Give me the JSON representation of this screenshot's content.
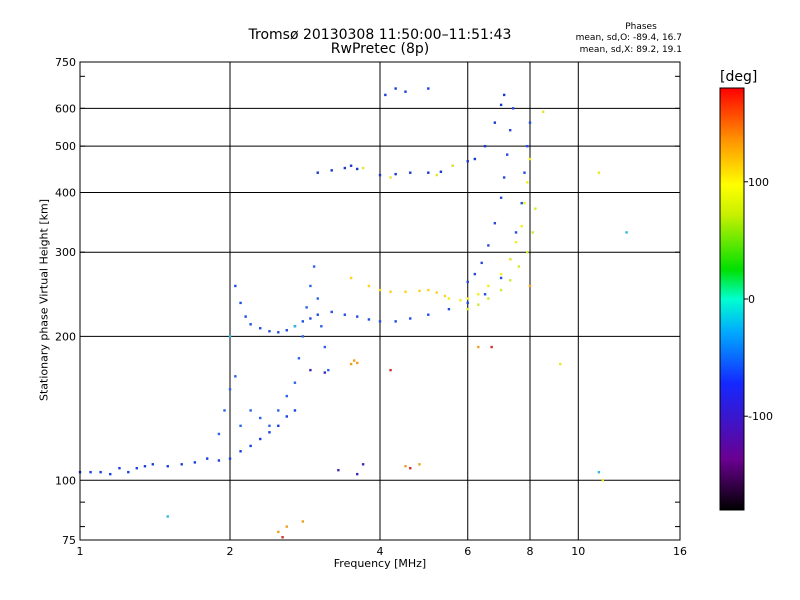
{
  "chart_data": {
    "type": "scatter",
    "title": "Tromsø 20130308 11:50:00–11:51:43",
    "subtitle": "RwPretec (8p)",
    "xlabel": "Frequency [MHz]",
    "ylabel": "Stationary phase Virtual Height [km]",
    "x_scale": "log2",
    "y_scale": "log",
    "xlim": [
      1,
      16
    ],
    "ylim": [
      75,
      750
    ],
    "x_ticks": [
      1,
      2,
      4,
      6,
      8,
      10,
      16
    ],
    "y_ticks": [
      75,
      100,
      200,
      300,
      400,
      500,
      600,
      750
    ],
    "grid": true,
    "color_scale": {
      "label": "[deg]",
      "range": [
        -180,
        180
      ],
      "ticks": [
        100,
        0,
        -100
      ]
    },
    "phases": {
      "title": "Phases",
      "o_line": "mean, sd,O: -89.4, 16.7",
      "x_line": "mean, sd,X: 89.2, 19.1"
    },
    "series": [
      {
        "color": "#1a3fe0",
        "points": [
          [
            1.0,
            104
          ],
          [
            1.05,
            104
          ],
          [
            1.1,
            104
          ],
          [
            1.15,
            103
          ],
          [
            1.2,
            106
          ],
          [
            1.25,
            104
          ],
          [
            1.3,
            106
          ],
          [
            1.35,
            107
          ],
          [
            1.4,
            108
          ],
          [
            1.5,
            107
          ],
          [
            1.6,
            108
          ],
          [
            1.7,
            109
          ],
          [
            1.8,
            111
          ],
          [
            1.9,
            110
          ],
          [
            2.0,
            111
          ],
          [
            2.1,
            115
          ],
          [
            2.2,
            118
          ],
          [
            2.3,
            122
          ],
          [
            2.4,
            126
          ],
          [
            2.5,
            130
          ],
          [
            2.6,
            136
          ],
          [
            2.7,
            140
          ]
        ]
      },
      {
        "color": "#2a62e8",
        "points": [
          [
            1.9,
            125
          ],
          [
            1.95,
            140
          ],
          [
            2.0,
            155
          ],
          [
            2.05,
            165
          ],
          [
            2.1,
            130
          ],
          [
            2.2,
            140
          ],
          [
            2.3,
            135
          ],
          [
            2.4,
            130
          ],
          [
            2.5,
            140
          ],
          [
            2.6,
            150
          ],
          [
            2.7,
            160
          ],
          [
            2.75,
            180
          ],
          [
            2.8,
            200
          ],
          [
            2.85,
            230
          ],
          [
            2.9,
            255
          ],
          [
            2.95,
            280
          ],
          [
            3.0,
            240
          ],
          [
            3.05,
            210
          ],
          [
            3.1,
            190
          ],
          [
            3.15,
            170
          ]
        ]
      },
      {
        "color": "#1f4de6",
        "points": [
          [
            2.05,
            255
          ],
          [
            2.1,
            235
          ],
          [
            2.15,
            220
          ],
          [
            2.2,
            212
          ],
          [
            2.3,
            208
          ],
          [
            2.4,
            205
          ],
          [
            2.5,
            204
          ],
          [
            2.6,
            206
          ],
          [
            2.7,
            210
          ],
          [
            2.8,
            215
          ],
          [
            2.9,
            218
          ],
          [
            3.0,
            222
          ],
          [
            3.2,
            225
          ],
          [
            3.4,
            222
          ],
          [
            3.6,
            220
          ],
          [
            3.8,
            217
          ],
          [
            4.0,
            215
          ],
          [
            4.3,
            215
          ],
          [
            4.6,
            218
          ],
          [
            5.0,
            222
          ],
          [
            5.5,
            228
          ],
          [
            6.0,
            235
          ],
          [
            6.5,
            245
          ],
          [
            7.0,
            265
          ],
          [
            7.3,
            290
          ],
          [
            7.5,
            330
          ],
          [
            7.7,
            380
          ],
          [
            7.8,
            440
          ],
          [
            7.9,
            500
          ],
          [
            8.0,
            560
          ]
        ]
      },
      {
        "color": "#1838cc",
        "points": [
          [
            3.0,
            440
          ],
          [
            3.2,
            445
          ],
          [
            3.4,
            450
          ],
          [
            3.5,
            455
          ],
          [
            3.6,
            448
          ],
          [
            4.0,
            435
          ],
          [
            4.3,
            437
          ],
          [
            4.6,
            440
          ],
          [
            5.0,
            440
          ],
          [
            5.3,
            442
          ],
          [
            5.6,
            455
          ],
          [
            6.0,
            465
          ],
          [
            6.2,
            470
          ],
          [
            6.5,
            500
          ],
          [
            6.8,
            560
          ],
          [
            7.0,
            610
          ],
          [
            7.1,
            640
          ]
        ]
      },
      {
        "color": "#2b46d8",
        "points": [
          [
            6.0,
            260
          ],
          [
            6.2,
            270
          ],
          [
            6.4,
            285
          ],
          [
            6.6,
            310
          ],
          [
            6.8,
            345
          ],
          [
            7.0,
            390
          ],
          [
            7.1,
            430
          ],
          [
            7.2,
            480
          ],
          [
            7.3,
            540
          ],
          [
            7.4,
            600
          ]
        ]
      },
      {
        "color": "#ffd21e",
        "points": [
          [
            3.5,
            265
          ],
          [
            3.8,
            255
          ],
          [
            4.0,
            250
          ],
          [
            4.2,
            248
          ],
          [
            4.5,
            248
          ],
          [
            4.8,
            249
          ],
          [
            5.0,
            250
          ],
          [
            5.2,
            247
          ],
          [
            5.4,
            243
          ]
        ]
      },
      {
        "color": "#f2ef1a",
        "points": [
          [
            5.5,
            240
          ],
          [
            5.8,
            238
          ],
          [
            6.0,
            240
          ],
          [
            6.3,
            245
          ],
          [
            6.6,
            255
          ],
          [
            7.0,
            270
          ],
          [
            7.3,
            290
          ],
          [
            7.5,
            315
          ],
          [
            7.7,
            340
          ],
          [
            7.8,
            380
          ],
          [
            7.9,
            420
          ],
          [
            8.0,
            470
          ]
        ]
      },
      {
        "color": "#c8ee30",
        "points": [
          [
            6.0,
            228
          ],
          [
            6.3,
            233
          ],
          [
            6.6,
            240
          ],
          [
            7.0,
            250
          ],
          [
            7.3,
            262
          ],
          [
            7.6,
            280
          ],
          [
            7.9,
            300
          ],
          [
            8.1,
            330
          ],
          [
            8.2,
            370
          ]
        ]
      },
      {
        "color": "#1a3fe0",
        "points": [
          [
            4.1,
            640
          ],
          [
            4.3,
            660
          ],
          [
            4.5,
            650
          ],
          [
            5.0,
            660
          ]
        ]
      },
      {
        "color": "#f0a020",
        "points": [
          [
            3.5,
            175
          ],
          [
            3.55,
            178
          ],
          [
            3.6,
            176
          ],
          [
            2.6,
            80
          ],
          [
            2.5,
            78
          ],
          [
            2.8,
            82
          ],
          [
            4.5,
            107
          ],
          [
            4.8,
            108
          ],
          [
            6.3,
            190
          ],
          [
            8.0,
            255
          ]
        ]
      },
      {
        "color": "#d03030",
        "points": [
          [
            4.2,
            170
          ],
          [
            4.6,
            106
          ],
          [
            6.7,
            190
          ],
          [
            2.55,
            76
          ]
        ]
      },
      {
        "color": "#e8e62a",
        "points": [
          [
            3.7,
            450
          ],
          [
            4.2,
            430
          ],
          [
            5.2,
            435
          ],
          [
            5.6,
            455
          ],
          [
            8.5,
            590
          ],
          [
            9.2,
            175
          ],
          [
            11.0,
            440
          ],
          [
            11.2,
            100
          ]
        ]
      },
      {
        "color": "#3a2ab8",
        "points": [
          [
            2.9,
            170
          ],
          [
            3.1,
            168
          ],
          [
            3.3,
            105
          ],
          [
            3.6,
            103
          ],
          [
            3.7,
            108
          ]
        ]
      },
      {
        "color": "#30b7e0",
        "points": [
          [
            1.5,
            84
          ],
          [
            2.0,
            200
          ],
          [
            2.7,
            210
          ],
          [
            11.0,
            104
          ],
          [
            12.5,
            330
          ]
        ]
      }
    ]
  }
}
